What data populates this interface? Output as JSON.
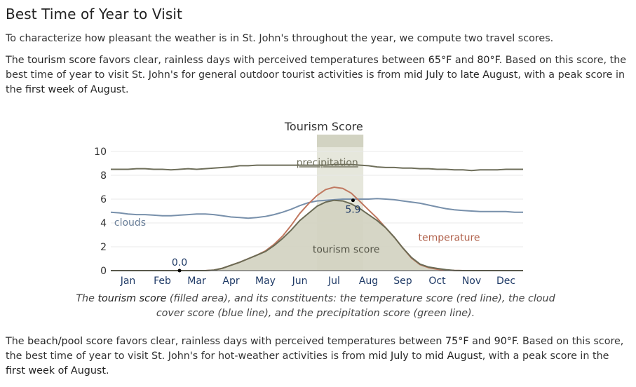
{
  "heading": "Best Time of Year to Visit",
  "intro": "To characterize how pleasant the weather is in St. John's throughout the year, we compute two travel scores.",
  "tourism_para": {
    "t1": "The ",
    "b1": "tourism score",
    "t2": " favors clear, rainless days with perceived temperatures between ",
    "b2": "65°F",
    "t3": " and ",
    "b3": "80°F",
    "t4": ". Based on this score, the best time of year to visit St. John's for general outdoor tourist activities is from ",
    "b4": "mid July",
    "t5": " to ",
    "b5": "late August",
    "t6": ", with a peak score in the ",
    "b6": "first week of August",
    "t7": "."
  },
  "caption": {
    "t1": "The ",
    "b1": "tourism score",
    "t2": " (filled area), and its constituents: the temperature score (red line), the cloud cover score (blue line), and the precipitation score (green line)."
  },
  "beach_para": {
    "t1": "The ",
    "b1": "beach/pool score",
    "t2": " favors clear, rainless days with perceived temperatures between ",
    "b2": "75°F",
    "t3": " and ",
    "b3": "90°F",
    "t4": ". Based on this score, the best time of year to visit St. John's for hot-weather activities is from ",
    "b4": "mid July",
    "t5": " to ",
    "b5": "mid August",
    "t6": ", with a peak score in the ",
    "b6": "first week of August",
    "t7": "."
  },
  "chart_data": {
    "type": "area",
    "title": "Tourism Score",
    "ylim": [
      0,
      10
    ],
    "yticks": [
      0,
      2,
      4,
      6,
      8,
      10
    ],
    "xlim": [
      0,
      12
    ],
    "months": [
      "Jan",
      "Feb",
      "Mar",
      "Apr",
      "May",
      "Jun",
      "Jul",
      "Aug",
      "Sep",
      "Oct",
      "Nov",
      "Dec"
    ],
    "highlight_range": [
      6.0,
      7.35
    ],
    "x": [
      0,
      0.25,
      0.5,
      0.75,
      1,
      1.25,
      1.5,
      1.75,
      2,
      2.25,
      2.5,
      2.75,
      3,
      3.25,
      3.5,
      3.75,
      4,
      4.25,
      4.5,
      4.75,
      5,
      5.25,
      5.5,
      5.75,
      6,
      6.25,
      6.5,
      6.75,
      7,
      7.25,
      7.5,
      7.75,
      8,
      8.25,
      8.5,
      8.75,
      9,
      9.25,
      9.5,
      9.75,
      10,
      10.25,
      10.5,
      10.75,
      11,
      11.25,
      11.5,
      11.75,
      12
    ],
    "series": [
      {
        "name": "tourism score",
        "role": "fill",
        "color": "#6b6b55",
        "fill": "#d1d2c0",
        "values": [
          0,
          0,
          0,
          0,
          0,
          0,
          0,
          0,
          0,
          0,
          0,
          0,
          0.05,
          0.2,
          0.45,
          0.7,
          1.0,
          1.3,
          1.6,
          2.1,
          2.7,
          3.4,
          4.2,
          4.8,
          5.4,
          5.75,
          5.9,
          5.85,
          5.6,
          5.2,
          4.7,
          4.2,
          3.6,
          2.8,
          1.9,
          1.1,
          0.55,
          0.3,
          0.18,
          0.08,
          0.02,
          0,
          0,
          0,
          0,
          0,
          0,
          0,
          0
        ]
      },
      {
        "name": "temperature",
        "role": "line",
        "color": "#c07860",
        "values": [
          0,
          0,
          0,
          0,
          0,
          0,
          0,
          0,
          0,
          0,
          0,
          0,
          0.05,
          0.2,
          0.45,
          0.7,
          1.0,
          1.3,
          1.65,
          2.2,
          2.9,
          3.8,
          4.8,
          5.6,
          6.3,
          6.8,
          7.0,
          6.9,
          6.5,
          5.8,
          5.1,
          4.4,
          3.6,
          2.8,
          1.9,
          1.05,
          0.5,
          0.25,
          0.12,
          0.05,
          0.01,
          0,
          0,
          0,
          0,
          0,
          0,
          0,
          0
        ]
      },
      {
        "name": "clouds",
        "role": "line",
        "color": "#7890ab",
        "values": [
          4.9,
          4.85,
          4.75,
          4.7,
          4.7,
          4.65,
          4.6,
          4.6,
          4.65,
          4.7,
          4.75,
          4.75,
          4.7,
          4.6,
          4.5,
          4.45,
          4.4,
          4.45,
          4.55,
          4.7,
          4.9,
          5.15,
          5.45,
          5.7,
          5.85,
          5.9,
          5.95,
          6.0,
          6.0,
          6.0,
          6.0,
          6.05,
          6.0,
          5.95,
          5.85,
          5.75,
          5.65,
          5.5,
          5.35,
          5.2,
          5.1,
          5.05,
          5.0,
          4.95,
          4.95,
          4.95,
          4.95,
          4.9,
          4.9
        ]
      },
      {
        "name": "precipitation",
        "role": "line",
        "color": "#6e6e5a",
        "values": [
          8.5,
          8.5,
          8.5,
          8.55,
          8.55,
          8.5,
          8.5,
          8.45,
          8.5,
          8.55,
          8.5,
          8.55,
          8.6,
          8.65,
          8.7,
          8.8,
          8.8,
          8.85,
          8.85,
          8.85,
          8.85,
          8.85,
          8.85,
          8.85,
          8.85,
          8.85,
          8.9,
          8.9,
          8.9,
          8.85,
          8.8,
          8.7,
          8.65,
          8.65,
          8.6,
          8.6,
          8.55,
          8.55,
          8.5,
          8.5,
          8.45,
          8.45,
          8.4,
          8.45,
          8.45,
          8.45,
          8.5,
          8.5,
          8.5
        ]
      }
    ],
    "series_labels": [
      {
        "text": "precipitation",
        "x": 6.3,
        "y": 9.1
      },
      {
        "text": "clouds",
        "x": 0.1,
        "y": 4.05
      },
      {
        "text": "temperature",
        "x": 8.95,
        "y": 2.8
      },
      {
        "text": "tourism score",
        "x": 6.85,
        "y": 1.8
      }
    ],
    "annotations": [
      {
        "text": "0.0",
        "x": 2.0,
        "y": 0.0
      },
      {
        "text": "5.9",
        "x": 7.05,
        "y": 5.9
      }
    ]
  }
}
